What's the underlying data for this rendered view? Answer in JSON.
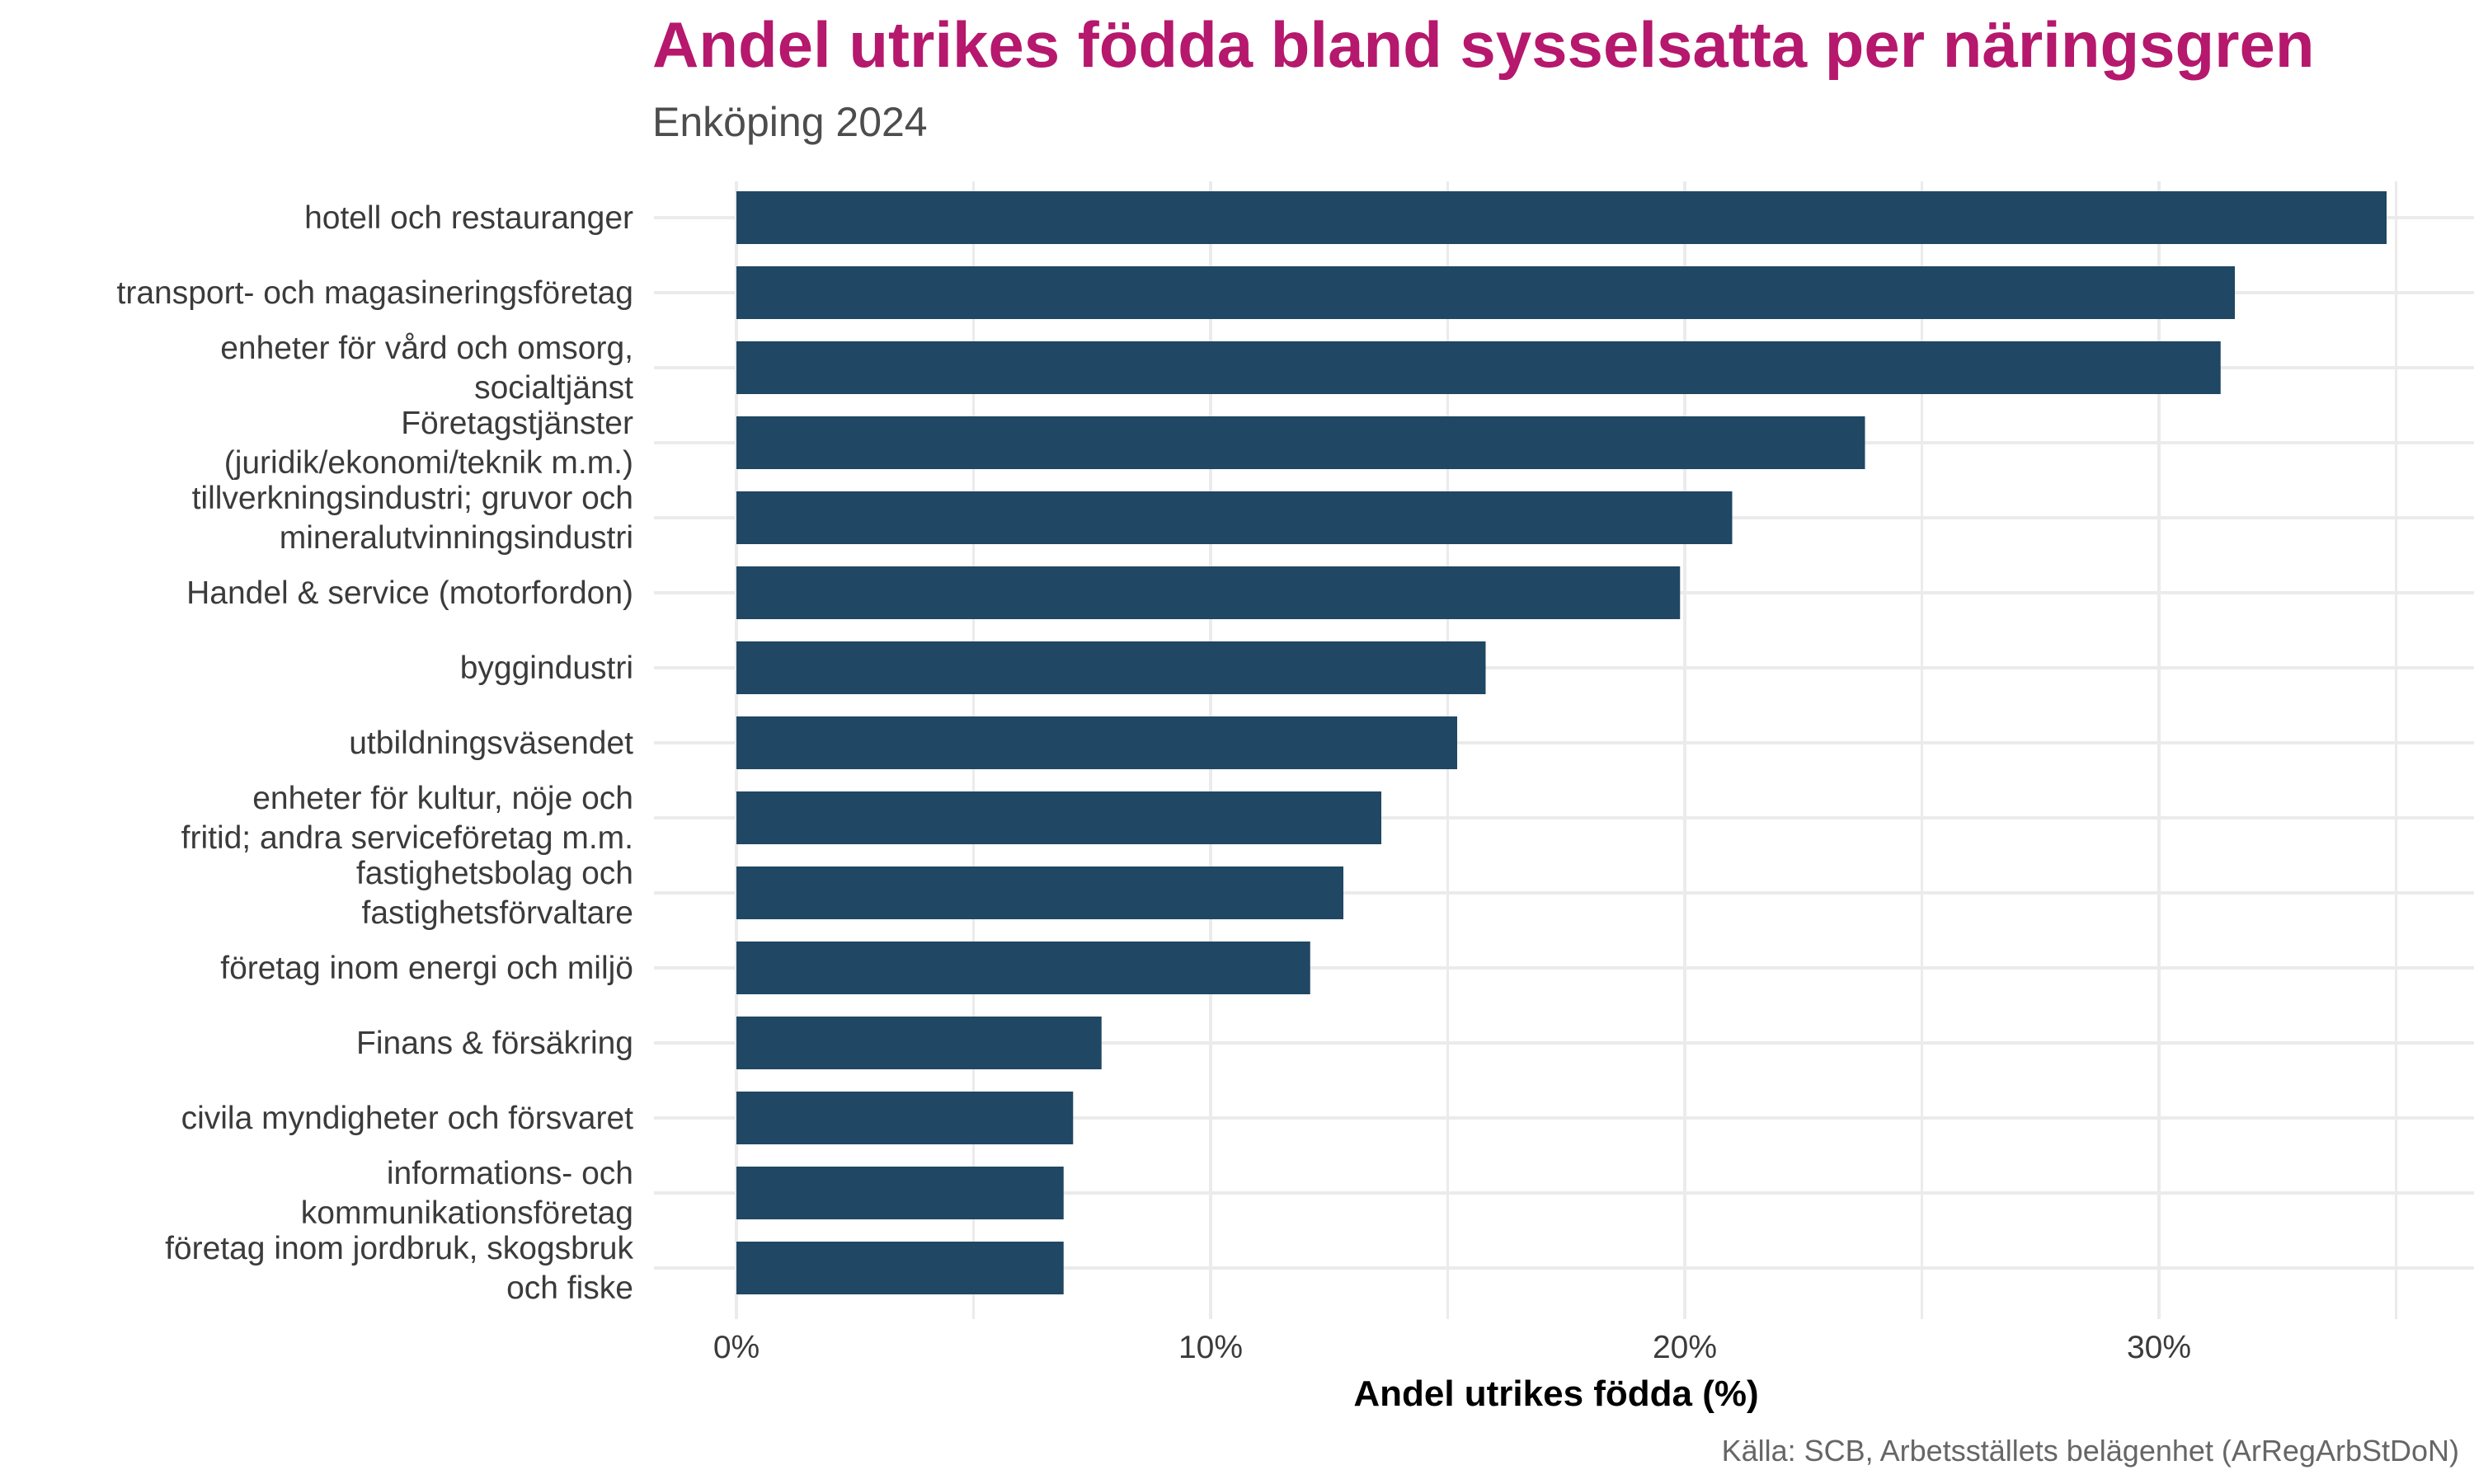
{
  "title": "Andel utrikes födda bland sysselsatta per näringsgren",
  "subtitle": "Enköping 2024",
  "source": "Källa: SCB, Arbetsställets belägenhet (ArRegArbStDoN)",
  "colors": {
    "bar": "#204763",
    "title": "#b5186c",
    "grid": "#ebebeb"
  },
  "chart_data": {
    "type": "bar",
    "orientation": "horizontal",
    "xlabel": "Andel utrikes födda (%)",
    "ylabel": "",
    "xlim": [
      0,
      36
    ],
    "x_ticks": [
      0,
      10,
      20,
      30
    ],
    "x_tick_labels": [
      "0%",
      "10%",
      "20%",
      "30%"
    ],
    "grid": true,
    "categories": [
      [
        "hotell och restauranger"
      ],
      [
        "transport- och magasineringsföretag"
      ],
      [
        "enheter för vård och omsorg,",
        "socialtjänst"
      ],
      [
        "Företagstjänster",
        "(juridik/ekonomi/teknik m.m.)"
      ],
      [
        "tillverkningsindustri; gruvor och",
        "mineralutvinningsindustri"
      ],
      [
        "Handel & service (motorfordon)"
      ],
      [
        "byggindustri"
      ],
      [
        "utbildningsväsendet"
      ],
      [
        "enheter för kultur, nöje och",
        "fritid; andra serviceföretag m.m."
      ],
      [
        "fastighetsbolag och",
        "fastighetsförvaltare"
      ],
      [
        "företag inom energi och miljö"
      ],
      [
        "Finans & försäkring"
      ],
      [
        "civila myndigheter och försvaret"
      ],
      [
        "informations- och",
        "kommunikationsföretag"
      ],
      [
        "företag inom jordbruk, skogsbruk",
        "och fiske"
      ]
    ],
    "values": [
      34.8,
      31.6,
      31.3,
      23.8,
      21.0,
      19.9,
      15.8,
      15.2,
      13.6,
      12.8,
      12.1,
      7.7,
      7.1,
      6.9,
      6.9
    ]
  }
}
